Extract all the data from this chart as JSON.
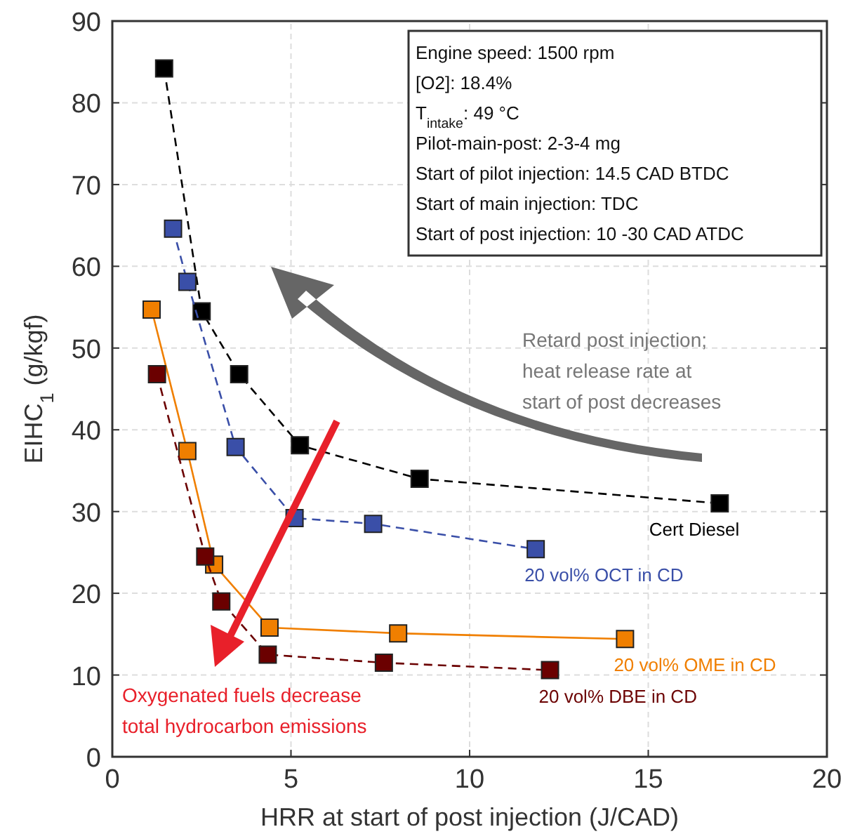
{
  "chart_data": {
    "type": "line",
    "xlabel": "HRR at start of post injection (J/CAD)",
    "ylabel": "EIHC$_{1}$  (g/kgf)",
    "xlim": [
      0,
      20
    ],
    "ylim": [
      0,
      90
    ],
    "xticks": [
      0,
      5,
      10,
      15,
      20
    ],
    "yticks": [
      0,
      10,
      20,
      30,
      40,
      50,
      60,
      70,
      80,
      90
    ],
    "grid": true,
    "marker": "square",
    "series": [
      {
        "name": "Cert Diesel",
        "color": "#000000",
        "line_style": "dashed",
        "x": [
          1.45,
          2.5,
          3.55,
          5.25,
          8.6,
          17.0
        ],
        "values": [
          84.2,
          54.5,
          46.8,
          38.1,
          34.0,
          31.0
        ]
      },
      {
        "name": "20 vol% OCT in CD",
        "color": "#3a4fa8",
        "line_style": "dashed",
        "x": [
          1.7,
          2.1,
          3.45,
          5.1,
          7.3,
          11.85
        ],
        "values": [
          64.6,
          58.1,
          37.9,
          29.2,
          28.5,
          25.4
        ]
      },
      {
        "name": "20 vol% OME in CD",
        "color": "#f07f00",
        "line_style": "solid",
        "x": [
          1.1,
          2.1,
          2.85,
          4.4,
          8.0,
          14.35
        ],
        "values": [
          54.7,
          37.4,
          23.5,
          15.8,
          15.1,
          14.4
        ]
      },
      {
        "name": "20 vol% DBE in CD",
        "color": "#6b0000",
        "line_style": "dashed",
        "x": [
          1.25,
          2.6,
          3.05,
          4.35,
          7.6,
          12.25
        ],
        "values": [
          46.8,
          24.5,
          19.0,
          12.5,
          11.5,
          10.6
        ]
      }
    ],
    "annotations": [
      "Engine speed: 1500 rpm",
      "[O2]: 18.4%",
      "T$_{intake}$: 49 °C",
      "Pilot-main-post: 2-3-4 mg",
      "Start of pilot injection: 14.5 CAD BTDC",
      "Start of main injection: TDC",
      "Start of post injection: 10 -30 CAD ATDC",
      "Retard post injection;\nheat release rate at\nstart of post decreases",
      "Oxygenated fuels decrease\ntotal hydrocarbon emissions"
    ]
  }
}
